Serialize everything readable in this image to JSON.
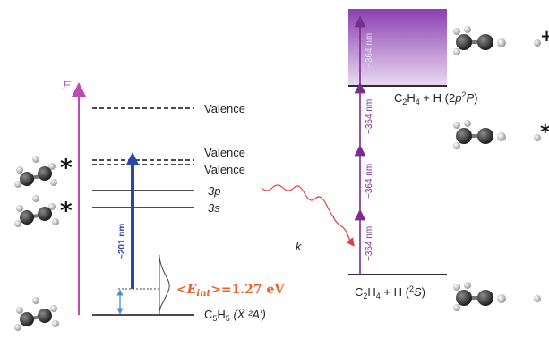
{
  "axis": {
    "label": "E",
    "color": "#c04bb0"
  },
  "left_levels": {
    "valence_1": "Valence",
    "valence_2": "Valence",
    "valence_3": "Valence",
    "level_3p": "3p",
    "level_3s": "3s",
    "ground_prefix": "C",
    "ground_sub": "5",
    "ground_mid": "H",
    "ground_sub2": "5",
    "ground_state": "(X̃ ²A′)"
  },
  "excitation": {
    "label": "~201 nm",
    "color": "#2a47a8"
  },
  "internal_energy": {
    "text": "<Eint>=1.27 eV",
    "lt": "<",
    "e": "E",
    "sub": "int",
    "rest": ">=1.27 eV",
    "color": "#e8622c"
  },
  "rate_label": "k",
  "right_levels": {
    "upper_label_pre": "C",
    "upper_sub1": "2",
    "upper_mid": "H",
    "upper_sub2": "4",
    "upper_rest": " + H (2",
    "upper_p": "p",
    "upper_sup": "2",
    "upper_P": "P",
    "upper_close": ")",
    "lower_label_pre": "C",
    "lower_sub1": "2",
    "lower_mid": "H",
    "lower_sub2": "4",
    "lower_rest": " + H (",
    "lower_sup": "2",
    "lower_S": "S",
    "lower_close": ")"
  },
  "photon_labels": [
    "~364 nm",
    "~364 nm",
    "~364 nm",
    "~364 nm"
  ],
  "photon_color": "#7a2d8c",
  "markers": {
    "star": "*",
    "plus": "+"
  },
  "colors": {
    "continuum_top": "#8b3fb0",
    "continuum_bottom": "#ffffff",
    "wavy": "#e04040"
  }
}
